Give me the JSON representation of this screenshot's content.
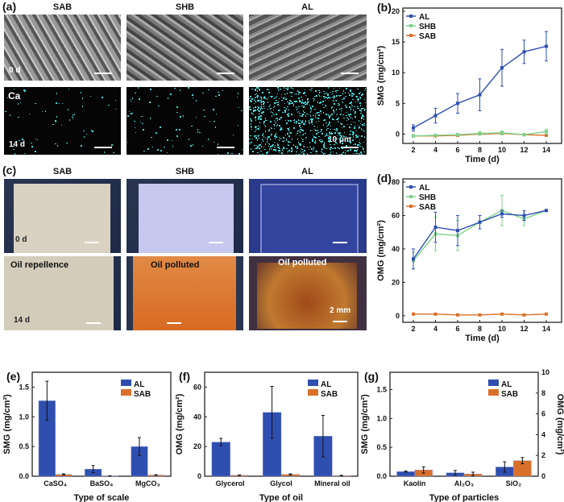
{
  "panel_a": {
    "label": "(a)",
    "columns": [
      "SAB",
      "SHB",
      "AL"
    ],
    "row1_label": "0 d",
    "row2_element": "Ca",
    "row2_label": "14 d",
    "scale_bar": "10 μm",
    "dot_color": "#46d6d6"
  },
  "panel_c": {
    "label": "(c)",
    "columns": [
      "SAB",
      "SHB",
      "AL"
    ],
    "row1_label": "0 d",
    "row2_label": "14 d",
    "captions": [
      "Oil repellence",
      "Oil polluted",
      "Oil polluted"
    ],
    "scale_bar": "2 mm"
  },
  "colors": {
    "AL": "#2f4fb0",
    "SHB": "#7fd18b",
    "SAB": "#d9702a"
  },
  "chart_data": [
    {
      "id": "b",
      "label": "(b)",
      "type": "line",
      "xlabel": "Time (d)",
      "ylabel": "SMG (mg/cm²)",
      "x": [
        2,
        4,
        6,
        8,
        10,
        12,
        14
      ],
      "xticks": [
        2,
        4,
        6,
        8,
        10,
        12,
        14
      ],
      "ylim": [
        -1,
        20
      ],
      "yticks": [
        0,
        5,
        10,
        15,
        20
      ],
      "legend": "top-left",
      "series": [
        {
          "name": "AL",
          "values": [
            1.0,
            3.0,
            5.0,
            6.4,
            10.8,
            13.4,
            14.3
          ],
          "err": [
            0.5,
            1.2,
            1.6,
            2.6,
            3.0,
            1.9,
            2.4
          ]
        },
        {
          "name": "SHB",
          "values": [
            -0.3,
            -0.2,
            -0.1,
            0.1,
            0.2,
            -0.1,
            0.4
          ],
          "err": [
            0.1,
            0.1,
            0.1,
            0.3,
            0.3,
            0.2,
            0.4
          ]
        },
        {
          "name": "SAB",
          "values": [
            -0.3,
            -0.3,
            -0.2,
            0.0,
            0.1,
            -0.1,
            -0.2
          ],
          "err": [
            0.1,
            0.1,
            0.1,
            0.2,
            0.2,
            0.1,
            0.1
          ]
        }
      ]
    },
    {
      "id": "d",
      "label": "(d)",
      "type": "line",
      "xlabel": "Time (d)",
      "ylabel": "OMG (mg/cm²)",
      "x": [
        2,
        4,
        6,
        8,
        10,
        12,
        14
      ],
      "xticks": [
        2,
        4,
        6,
        8,
        10,
        12,
        14
      ],
      "ylim": [
        -2,
        80
      ],
      "yticks": [
        0,
        20,
        40,
        60,
        80
      ],
      "legend": "top-left",
      "series": [
        {
          "name": "AL",
          "values": [
            34,
            53,
            51,
            56,
            61,
            60,
            63
          ],
          "err": [
            6,
            9,
            9,
            4,
            2,
            3,
            0.5
          ]
        },
        {
          "name": "SHB",
          "values": [
            33,
            49,
            48,
            56,
            63,
            58,
            63
          ],
          "err": [
            5,
            10,
            9,
            4,
            9,
            4,
            0.5
          ]
        },
        {
          "name": "SAB",
          "values": [
            1,
            1,
            0.5,
            0.5,
            1,
            0.5,
            1
          ],
          "err": [
            0.2,
            0.2,
            0.2,
            0.2,
            0.2,
            0.2,
            0.2
          ]
        }
      ]
    },
    {
      "id": "e",
      "label": "(e)",
      "type": "bar",
      "xlabel": "Type of scale",
      "ylabel": "SMG (mg/cm²)",
      "categories": [
        "CaSO₄",
        "BaSO₄",
        "MgCO₃"
      ],
      "ylim": [
        0,
        1.75
      ],
      "yticks": [
        "0.0",
        "0.5",
        "1.0",
        "1.5"
      ],
      "legend": "top-right",
      "series": [
        {
          "name": "AL",
          "values": [
            1.27,
            0.12,
            0.5
          ],
          "err": [
            0.33,
            0.06,
            0.15
          ]
        },
        {
          "name": "SAB",
          "values": [
            0.03,
            0.005,
            0.02
          ],
          "err": [
            0.01,
            0.003,
            0.005
          ]
        }
      ]
    },
    {
      "id": "f",
      "label": "(f)",
      "type": "bar",
      "xlabel": "Type of oil",
      "ylabel": "OMG (mg/cm²)",
      "categories": [
        "Glycerol",
        "Glycol",
        "Mineral oil"
      ],
      "ylim": [
        0,
        70
      ],
      "yticks": [
        "0",
        "20",
        "40",
        "60"
      ],
      "legend": "top-right",
      "series": [
        {
          "name": "AL",
          "values": [
            23,
            43,
            27
          ],
          "err": [
            2.5,
            17.5,
            14
          ]
        },
        {
          "name": "SAB",
          "values": [
            0.7,
            1.2,
            0.4
          ],
          "err": [
            0.2,
            0.4,
            0.2
          ]
        }
      ]
    },
    {
      "id": "g",
      "label": "(g)",
      "type": "bar",
      "xlabel": "Type of particles",
      "ylabel": "SMG (mg/cm²)",
      "ylabel_right": "OMG (mg/cm²)",
      "categories": [
        "Kaolin",
        "Al₂O₃",
        "SiO₂"
      ],
      "ylim": [
        0,
        1.8
      ],
      "yticks": [
        "0.0",
        "0.5",
        "1.0",
        "1.5"
      ],
      "ylim_right": [
        0,
        10
      ],
      "yticks_right": [
        "0",
        "2",
        "4",
        "6",
        "8",
        "10"
      ],
      "legend": "top-right",
      "series": [
        {
          "name": "AL",
          "axis": "left",
          "values": [
            0.08,
            0.06,
            0.16
          ],
          "err": [
            0.01,
            0.04,
            0.09
          ]
        },
        {
          "name": "SAB",
          "axis": "right",
          "values": [
            0.6,
            0.22,
            1.5
          ],
          "err": [
            0.3,
            0.17,
            0.3
          ]
        }
      ]
    }
  ]
}
